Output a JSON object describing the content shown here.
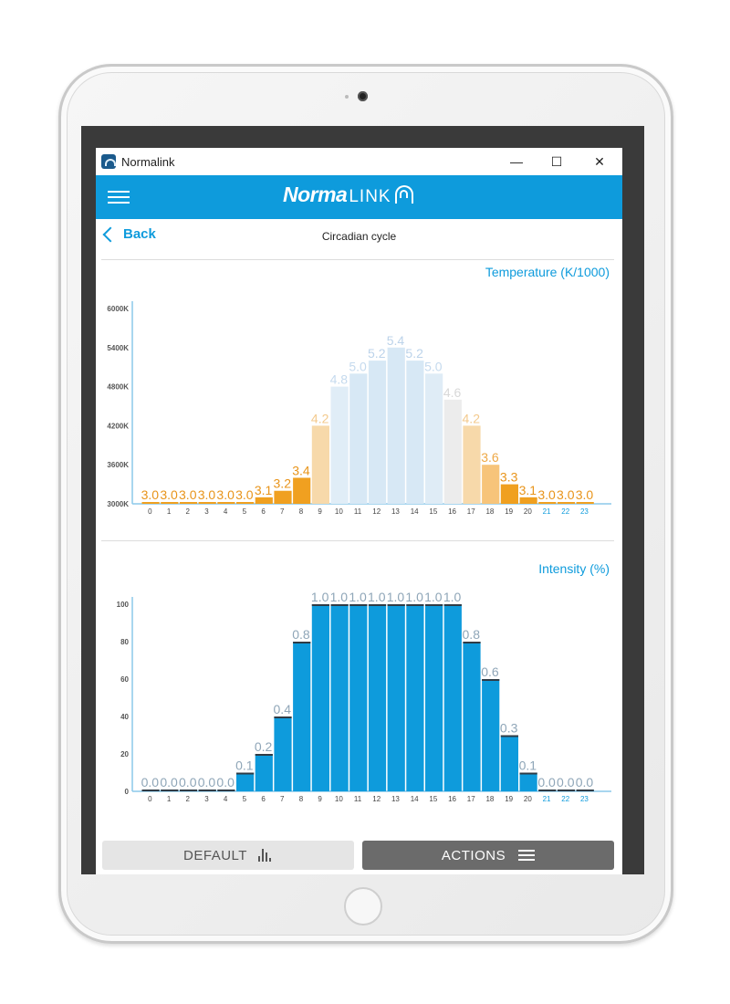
{
  "window": {
    "title": "Normalink",
    "minimize_icon": "minimize-icon",
    "maximize_icon": "maximize-icon",
    "close_icon": "close-icon",
    "minimize_glyph": "—",
    "maximize_glyph": "☐",
    "close_glyph": "✕"
  },
  "header": {
    "logo_bold": "Norma",
    "logo_rest": "LINK",
    "menu_icon": "hamburger-icon",
    "brand_color": "#0e9bdc"
  },
  "nav": {
    "back_label": "Back",
    "page_title": "Circadian cycle"
  },
  "temperature_chart": {
    "title": "Temperature (K/1000)",
    "y_ticks": [
      "6000K",
      "5400K",
      "4800K",
      "4200K",
      "3600K",
      "3000K"
    ],
    "y_tick_values": [
      6000,
      5400,
      4800,
      4200,
      3600,
      3000
    ],
    "categories": [
      "0",
      "1",
      "2",
      "3",
      "4",
      "5",
      "6",
      "7",
      "8",
      "9",
      "10",
      "11",
      "12",
      "13",
      "14",
      "15",
      "16",
      "17",
      "18",
      "19",
      "20",
      "21",
      "22",
      "23"
    ],
    "values": [
      3.0,
      3.0,
      3.0,
      3.0,
      3.0,
      3.0,
      3.1,
      3.2,
      3.4,
      4.2,
      4.8,
      5.0,
      5.2,
      5.4,
      5.2,
      5.0,
      4.6,
      4.2,
      3.6,
      3.3,
      3.1,
      3.0,
      3.0,
      3.0
    ],
    "labels": [
      "3.0",
      "3.0",
      "3.0",
      "3.0",
      "3.0",
      "3.0",
      "3.1",
      "3.2",
      "3.4",
      "4.2",
      "4.8",
      "5.0",
      "5.2",
      "5.4",
      "5.2",
      "5.0",
      "4.6",
      "4.2",
      "3.6",
      "3.3",
      "3.1",
      "3.0",
      "3.0",
      "3.0"
    ],
    "bar_colors": [
      "#f0a020",
      "#f0a020",
      "#f0a020",
      "#f0a020",
      "#f0a020",
      "#f0a020",
      "#f0a020",
      "#f0a020",
      "#f0a020",
      "#f7d9aa",
      "#e0edf7",
      "#d7e8f5",
      "#d7e8f5",
      "#d7e8f5",
      "#d7e8f5",
      "#dfecf6",
      "#ececec",
      "#f7d9aa",
      "#f7c47a",
      "#f0a020",
      "#f0a020",
      "#f0a020",
      "#f0a020",
      "#f0a020"
    ],
    "label_colors": [
      "#e8941a",
      "#e8941a",
      "#e8941a",
      "#e8941a",
      "#e8941a",
      "#e8941a",
      "#e8941a",
      "#e8941a",
      "#e8941a",
      "#f3c98c",
      "#c5daee",
      "#c5daee",
      "#bcd3ea",
      "#bcd3ea",
      "#bcd3ea",
      "#c5daee",
      "#d8d8d8",
      "#f3c98c",
      "#eea845",
      "#e8941a",
      "#e8941a",
      "#e8941a",
      "#e8941a",
      "#e8941a"
    ],
    "highlight_ticks": [
      "21",
      "22",
      "23"
    ],
    "ylim": [
      3000,
      6000
    ]
  },
  "intensity_chart": {
    "title": "Intensity (%)",
    "y_ticks": [
      "100",
      "80",
      "60",
      "40",
      "20",
      "0"
    ],
    "y_tick_values": [
      100,
      80,
      60,
      40,
      20,
      0
    ],
    "categories": [
      "0",
      "1",
      "2",
      "3",
      "4",
      "5",
      "6",
      "7",
      "8",
      "9",
      "10",
      "11",
      "12",
      "13",
      "14",
      "15",
      "16",
      "17",
      "18",
      "19",
      "20",
      "21",
      "22",
      "23"
    ],
    "values": [
      0.0,
      0.0,
      0.0,
      0.0,
      0.0,
      0.1,
      0.2,
      0.4,
      0.8,
      1.0,
      1.0,
      1.0,
      1.0,
      1.0,
      1.0,
      1.0,
      1.0,
      0.8,
      0.6,
      0.3,
      0.1,
      0.0,
      0.0,
      0.0
    ],
    "labels": [
      "0.0",
      "0.0",
      "0.0",
      "0.0",
      "0.0",
      "0.1",
      "0.2",
      "0.4",
      "0.8",
      "1.0",
      "1.0",
      "1.0",
      "1.0",
      "1.0",
      "1.0",
      "1.0",
      "1.0",
      "0.8",
      "0.6",
      "0.3",
      "0.1",
      "0.0",
      "0.0",
      "0.0"
    ],
    "bar_color": "#0e9bdc",
    "label_color": "#8fa6b8",
    "highlight_ticks": [
      "21",
      "22",
      "23"
    ],
    "ylim": [
      0,
      1
    ]
  },
  "buttons": {
    "default_label": "DEFAULT",
    "default_icon": "bar-chart-icon",
    "actions_label": "ACTIONS",
    "actions_icon": "menu-lines-icon"
  }
}
